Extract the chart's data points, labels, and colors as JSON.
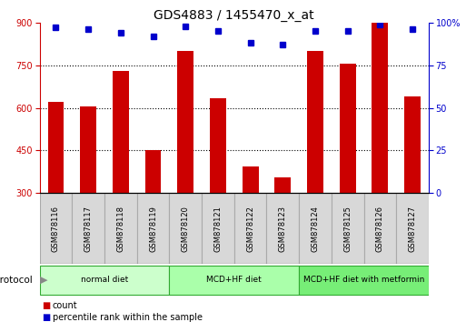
{
  "title": "GDS4883 / 1455470_x_at",
  "samples": [
    "GSM878116",
    "GSM878117",
    "GSM878118",
    "GSM878119",
    "GSM878120",
    "GSM878121",
    "GSM878122",
    "GSM878123",
    "GSM878124",
    "GSM878125",
    "GSM878126",
    "GSM878127"
  ],
  "counts": [
    620,
    605,
    730,
    450,
    800,
    635,
    395,
    355,
    800,
    755,
    910,
    640
  ],
  "percentile_ranks": [
    97,
    96,
    94,
    92,
    98,
    95,
    88,
    87,
    95,
    95,
    99,
    96
  ],
  "ylim_left": [
    300,
    900
  ],
  "ylim_right": [
    0,
    100
  ],
  "yticks_left": [
    300,
    450,
    600,
    750,
    900
  ],
  "yticks_right": [
    0,
    25,
    50,
    75,
    100
  ],
  "bar_color": "#cc0000",
  "dot_color": "#0000cc",
  "grid_color": "#000000",
  "protocols": [
    {
      "label": "normal diet",
      "start": 0,
      "end": 4,
      "color": "#ccffcc"
    },
    {
      "label": "MCD+HF diet",
      "start": 4,
      "end": 8,
      "color": "#aaffaa"
    },
    {
      "label": "MCD+HF diet with metformin",
      "start": 8,
      "end": 12,
      "color": "#77ee77"
    }
  ],
  "protocol_label": "protocol",
  "legend_count_label": "count",
  "legend_pct_label": "percentile rank within the sample",
  "title_fontsize": 10,
  "tick_label_fontsize": 7,
  "background_color": "#ffffff",
  "xticklabel_bg": "#d8d8d8",
  "xticklabel_edge": "#aaaaaa",
  "bar_width": 0.5
}
